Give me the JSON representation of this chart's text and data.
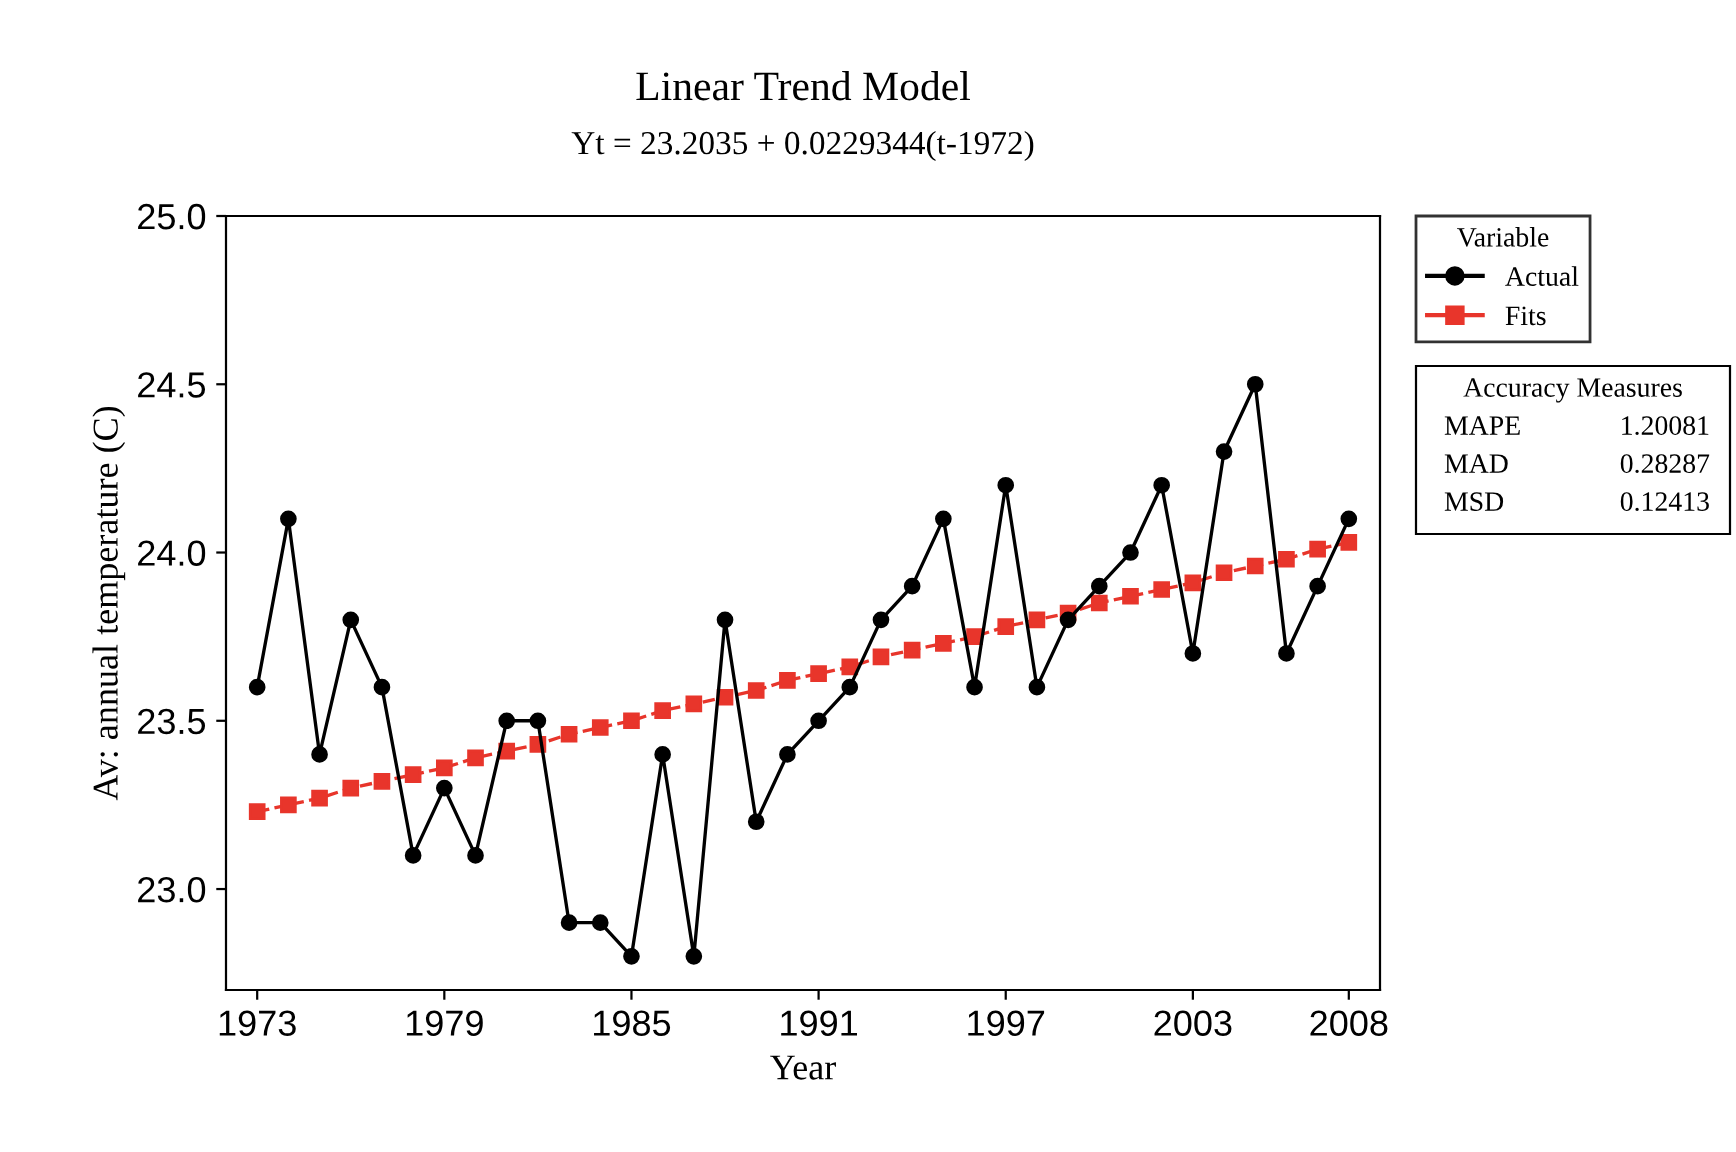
{
  "chart_data": {
    "type": "line",
    "title": "Linear Trend Model",
    "subtitle": "Yt = 23.2035 + 0.0229344(t-1972)",
    "xlabel": "Year",
    "ylabel": "Av: annual temperature (C)",
    "x": [
      1973,
      1974,
      1975,
      1976,
      1977,
      1978,
      1979,
      1980,
      1981,
      1982,
      1983,
      1984,
      1985,
      1986,
      1987,
      1988,
      1989,
      1990,
      1991,
      1992,
      1993,
      1994,
      1995,
      1996,
      1997,
      1998,
      1999,
      2000,
      2001,
      2002,
      2003,
      2004,
      2005,
      2006,
      2007,
      2008
    ],
    "series": [
      {
        "name": "Actual",
        "color": "#000000",
        "marker": "circle",
        "values": [
          23.6,
          24.1,
          23.4,
          23.8,
          23.6,
          23.1,
          23.3,
          23.1,
          23.5,
          23.5,
          22.9,
          22.9,
          22.8,
          23.4,
          22.8,
          23.8,
          23.2,
          23.4,
          23.5,
          23.6,
          23.8,
          23.9,
          24.1,
          23.6,
          24.2,
          23.6,
          23.8,
          23.9,
          24.0,
          24.2,
          23.7,
          24.3,
          24.5,
          23.7,
          23.9,
          24.1
        ]
      },
      {
        "name": "Fits",
        "color": "#e8352b",
        "marker": "square",
        "line_style": "dashed",
        "values": [
          23.23,
          23.25,
          23.27,
          23.3,
          23.32,
          23.34,
          23.36,
          23.39,
          23.41,
          23.43,
          23.46,
          23.48,
          23.5,
          23.53,
          23.55,
          23.57,
          23.59,
          23.62,
          23.64,
          23.66,
          23.69,
          23.71,
          23.73,
          23.75,
          23.78,
          23.8,
          23.82,
          23.85,
          23.87,
          23.89,
          23.91,
          23.94,
          23.96,
          23.98,
          24.01,
          24.03
        ]
      }
    ],
    "xlim": [
      1972,
      2009
    ],
    "xticks": [
      1973,
      1979,
      1985,
      1991,
      1997,
      2003,
      2008
    ],
    "ylim": [
      22.7,
      25.0
    ],
    "yticks": [
      {
        "value": 23.0,
        "label": "23.0"
      },
      {
        "value": 23.5,
        "label": "23.5"
      },
      {
        "value": 24.0,
        "label": "24.0"
      },
      {
        "value": 24.5,
        "label": "24.5"
      },
      {
        "value": 25.0,
        "label": "25.0"
      }
    ],
    "legend": "right",
    "legend_title": "Variable",
    "grid": false,
    "annotations": [
      "Accuracy Measures",
      "MAPE 1.20081",
      "MAD 0.28287",
      "MSD 0.12413"
    ]
  }
}
